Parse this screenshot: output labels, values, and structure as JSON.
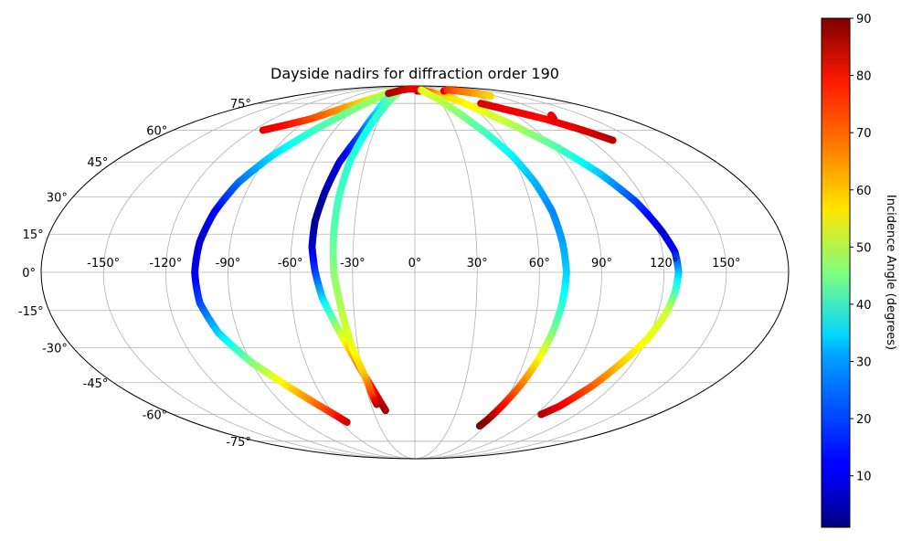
{
  "chart_data": {
    "type": "scatter",
    "projection": "mollweide",
    "title": "Dayside nadirs for diffraction order 190",
    "lon_ticks": [
      "-150°",
      "-120°",
      "-90°",
      "-60°",
      "-30°",
      "0°",
      "30°",
      "60°",
      "90°",
      "120°",
      "150°"
    ],
    "lat_ticks": [
      "75°",
      "60°",
      "45°",
      "30°",
      "15°",
      "0°",
      "-15°",
      "-30°",
      "-45°",
      "-60°",
      "-75°"
    ],
    "lon_tick_values": [
      -150,
      -120,
      -90,
      -60,
      -30,
      0,
      30,
      60,
      90,
      120,
      150
    ],
    "lat_tick_values": [
      75,
      60,
      45,
      30,
      15,
      0,
      -15,
      -30,
      -45,
      -60,
      -75
    ],
    "grid": true,
    "colorbar": {
      "label": "Incidence Angle (degrees)",
      "min": 1,
      "max": 90,
      "ticks": [
        "10",
        "20",
        "30",
        "40",
        "50",
        "60",
        "70",
        "80",
        "90"
      ],
      "tick_values": [
        10,
        20,
        30,
        40,
        50,
        60,
        70,
        80,
        90
      ],
      "colormap": "jet"
    },
    "tracks": [
      {
        "points": [
          [
            -113,
            60,
            82
          ],
          [
            -100,
            63,
            78
          ],
          [
            -88,
            66,
            73
          ],
          [
            -78,
            70,
            68
          ],
          [
            -68,
            74,
            63
          ],
          [
            -58,
            78,
            59
          ],
          [
            -48,
            82,
            56
          ],
          [
            -43,
            84,
            55
          ]
        ]
      },
      {
        "points": [
          [
            -45,
            83,
            50
          ],
          [
            -60,
            72,
            46
          ],
          [
            -75,
            60,
            40
          ],
          [
            -88,
            48,
            32
          ],
          [
            -97,
            36,
            22
          ],
          [
            -102,
            24,
            12
          ],
          [
            -105,
            12,
            8
          ],
          [
            -106,
            0,
            10
          ],
          [
            -105,
            -12,
            18
          ],
          [
            -100,
            -24,
            30
          ],
          [
            -90,
            -36,
            45
          ],
          [
            -78,
            -46,
            58
          ],
          [
            -68,
            -54,
            68
          ],
          [
            -60,
            -60,
            76
          ],
          [
            -55,
            -64,
            83
          ]
        ]
      },
      {
        "points": [
          [
            -37,
            78,
            42
          ],
          [
            -36,
            70,
            32
          ],
          [
            -39,
            58,
            20
          ],
          [
            -45,
            45,
            10
          ],
          [
            -48,
            32,
            5
          ],
          [
            -50,
            20,
            2
          ],
          [
            -50,
            10,
            8
          ],
          [
            -48,
            0,
            17
          ],
          [
            -45,
            -10,
            30
          ],
          [
            -40,
            -20,
            45
          ],
          [
            -35,
            -30,
            60
          ],
          [
            -30,
            -40,
            72
          ],
          [
            -25,
            -50,
            80
          ],
          [
            -21,
            -58,
            87
          ]
        ]
      },
      {
        "points": [
          [
            -30,
            82,
            48
          ],
          [
            -32,
            72,
            40
          ],
          [
            -36,
            58,
            36
          ],
          [
            -39,
            45,
            38
          ],
          [
            -40,
            30,
            40
          ],
          [
            -40,
            15,
            42
          ],
          [
            -39,
            0,
            46
          ],
          [
            -36,
            -15,
            50
          ],
          [
            -33,
            -30,
            55
          ],
          [
            -29,
            -42,
            62
          ],
          [
            -28,
            -46,
            68
          ],
          [
            -27,
            -52,
            75
          ],
          [
            -26,
            -55,
            85
          ]
        ]
      },
      {
        "points": [
          [
            -45,
            82,
            87
          ],
          [
            -30,
            85,
            84
          ],
          [
            -15,
            86,
            82
          ],
          [
            0,
            86,
            80
          ],
          [
            10,
            84,
            82
          ]
        ]
      },
      {
        "points": [
          [
            5,
            84,
            85
          ],
          [
            15,
            85,
            75
          ],
          [
            30,
            83,
            70
          ],
          [
            45,
            80,
            60
          ],
          [
            55,
            76,
            58
          ],
          [
            65,
            70,
            55
          ],
          [
            78,
            62,
            50
          ],
          [
            92,
            52,
            42
          ],
          [
            105,
            40,
            30
          ],
          [
            115,
            28,
            18
          ],
          [
            122,
            16,
            8
          ],
          [
            126,
            8,
            12
          ],
          [
            127,
            0,
            28
          ],
          [
            126,
            -8,
            40
          ],
          [
            124,
            -16,
            52
          ],
          [
            120,
            -26,
            55
          ],
          [
            114,
            -36,
            60
          ],
          [
            108,
            -46,
            70
          ],
          [
            100,
            -56,
            80
          ],
          [
            94,
            -60,
            85
          ]
        ]
      },
      {
        "points": [
          [
            15,
            85,
            55
          ],
          [
            30,
            78,
            52
          ],
          [
            42,
            68,
            46
          ],
          [
            52,
            58,
            40
          ],
          [
            60,
            48,
            34
          ],
          [
            66,
            36,
            28
          ],
          [
            70,
            24,
            24
          ],
          [
            72,
            12,
            26
          ],
          [
            73,
            0,
            30
          ],
          [
            72,
            -12,
            37
          ],
          [
            70,
            -24,
            45
          ],
          [
            67,
            -36,
            58
          ],
          [
            64,
            -46,
            68
          ],
          [
            60,
            -56,
            78
          ],
          [
            57,
            -63,
            87
          ],
          [
            55,
            -66,
            90
          ]
        ]
      },
      {
        "points": [
          [
            60,
            84,
            84
          ],
          [
            75,
            85,
            75
          ],
          [
            90,
            84,
            70
          ],
          [
            105,
            82,
            65
          ],
          [
            112,
            80,
            60
          ]
        ]
      },
      {
        "points": [
          [
            75,
            75,
            82
          ],
          [
            95,
            70,
            80
          ],
          [
            110,
            66,
            78
          ],
          [
            125,
            60,
            82
          ],
          [
            135,
            55,
            85
          ]
        ]
      },
      {
        "points": [
          [
            118,
            66,
            83
          ],
          [
            122,
            68,
            80
          ]
        ]
      }
    ]
  }
}
